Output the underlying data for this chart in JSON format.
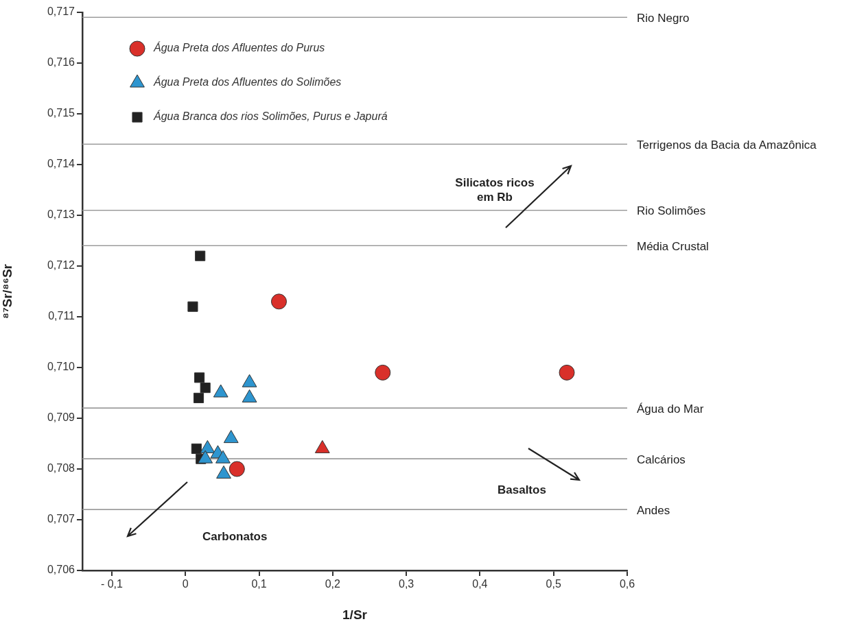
{
  "chart_data": {
    "type": "scatter",
    "xlabel": "1/Sr",
    "ylabel": "⁸⁷Sr/⁸⁶Sr",
    "xlim": [
      -0.14,
      0.6
    ],
    "xticks": [
      {
        "value": -0.1,
        "label": "- 0,1"
      },
      {
        "value": 0,
        "label": "0"
      },
      {
        "value": 0.1,
        "label": "0,1"
      },
      {
        "value": 0.2,
        "label": "0,2"
      },
      {
        "value": 0.3,
        "label": "0,3"
      },
      {
        "value": 0.4,
        "label": "0,4"
      },
      {
        "value": 0.5,
        "label": "0,5"
      },
      {
        "value": 0.6,
        "label": "0,6"
      }
    ],
    "ylim": [
      0.706,
      0.717
    ],
    "yticks": [
      {
        "value": 0.706,
        "label": "0,706"
      },
      {
        "value": 0.707,
        "label": "0,707"
      },
      {
        "value": 0.708,
        "label": "0,708"
      },
      {
        "value": 0.709,
        "label": "0,709"
      },
      {
        "value": 0.71,
        "label": "0,710"
      },
      {
        "value": 0.711,
        "label": "0,711"
      },
      {
        "value": 0.712,
        "label": "0,712"
      },
      {
        "value": 0.713,
        "label": "0,713"
      },
      {
        "value": 0.714,
        "label": "0,714"
      },
      {
        "value": 0.715,
        "label": "0,715"
      },
      {
        "value": 0.716,
        "label": "0,716"
      },
      {
        "value": 0.717,
        "label": "0,717"
      }
    ],
    "grid": false,
    "legend": "top left",
    "series": [
      {
        "name": "Água Preta dos Afluentes do Purus",
        "color": "#d9302a",
        "marker": "circle",
        "x": [
          0.127,
          0.07,
          0.268,
          0.518
        ],
        "values": [
          0.7113,
          0.708,
          0.7099,
          0.7099
        ]
      },
      {
        "name": "Água Preta dos Afluentes do Solimões",
        "color": "#2e95cf",
        "marker": "triangle",
        "x": [
          0.048,
          0.087,
          0.087,
          0.03,
          0.062,
          0.044,
          0.051,
          0.027,
          0.052
        ],
        "values": [
          0.7095,
          0.7097,
          0.7094,
          0.7084,
          0.7086,
          0.7083,
          0.7082,
          0.7082,
          0.7079
        ]
      },
      {
        "name": "Água Branca dos rios Solimões, Purus e Japurá",
        "color": "#222222",
        "marker": "square",
        "x": [
          0.02,
          0.01,
          0.019,
          0.018,
          0.027,
          0.015,
          0.021
        ],
        "values": [
          0.7122,
          0.7112,
          0.7098,
          0.7094,
          0.7096,
          0.7084,
          0.7082
        ]
      },
      {
        "color": "#d9302a",
        "marker": "triangle",
        "x": [
          0.186
        ],
        "values": [
          0.7084
        ]
      }
    ],
    "ref_lines": [
      {
        "axis": "y",
        "value": 0.7169,
        "label": "Rio Negro",
        "color": "#999999"
      },
      {
        "axis": "y",
        "value": 0.7144,
        "label": "Terrigenos da Bacia da Amazônica",
        "color": "#999999"
      },
      {
        "axis": "y",
        "value": 0.7131,
        "label": "Rio Solimões",
        "color": "#999999"
      },
      {
        "axis": "y",
        "value": 0.7124,
        "label": "Média Crustal",
        "color": "#999999"
      },
      {
        "axis": "y",
        "value": 0.7092,
        "label": "Água do Mar",
        "color": "#999999"
      },
      {
        "axis": "y",
        "value": 0.7082,
        "label": "Calcários",
        "color": "#999999"
      },
      {
        "axis": "y",
        "value": 0.7072,
        "label": "Andes",
        "color": "#999999"
      }
    ],
    "annotations": [
      "Silicatos ricos em Rb",
      "Basaltos",
      "Carbonatos"
    ]
  }
}
